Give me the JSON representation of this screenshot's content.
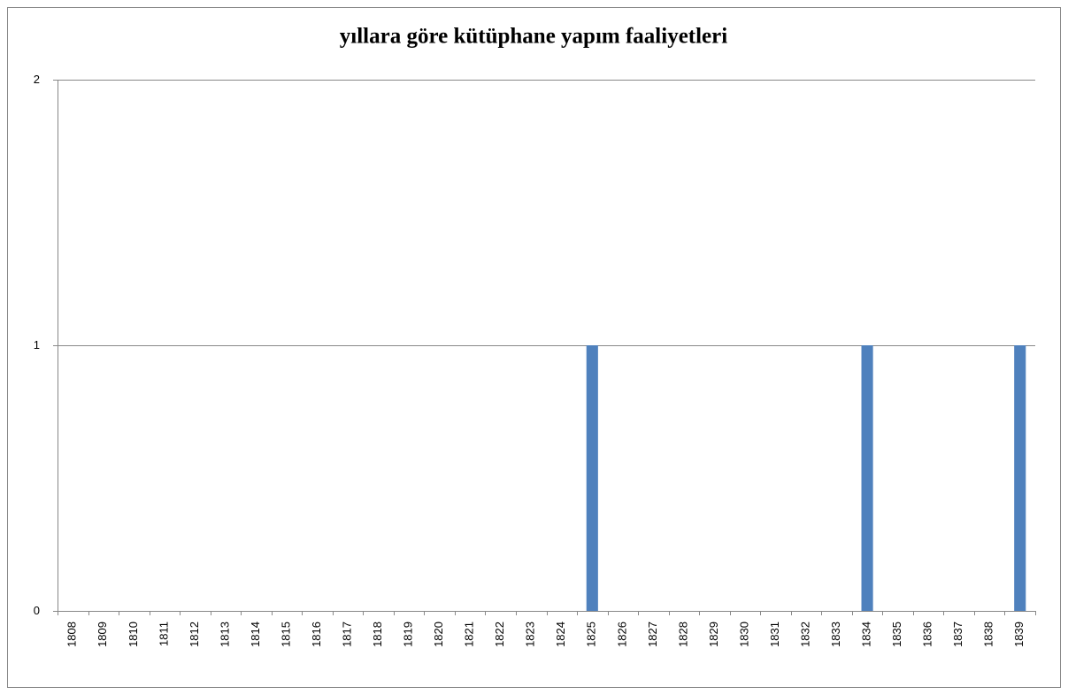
{
  "chart_data": {
    "type": "bar",
    "title": "yıllara göre kütüphane yapım faaliyetleri",
    "categories": [
      "1808",
      "1809",
      "1810",
      "1811",
      "1812",
      "1813",
      "1814",
      "1815",
      "1816",
      "1817",
      "1818",
      "1819",
      "1820",
      "1821",
      "1822",
      "1823",
      "1824",
      "1825",
      "1826",
      "1827",
      "1828",
      "1829",
      "1830",
      "1831",
      "1832",
      "1833",
      "1834",
      "1835",
      "1836",
      "1837",
      "1838",
      "1839"
    ],
    "values": [
      0,
      0,
      0,
      0,
      0,
      0,
      0,
      0,
      0,
      0,
      0,
      0,
      0,
      0,
      0,
      0,
      0,
      1,
      0,
      0,
      0,
      0,
      0,
      0,
      0,
      0,
      1,
      0,
      0,
      0,
      0,
      1
    ],
    "color": "#4f81bd",
    "ylim": [
      0,
      2
    ],
    "yticks": [
      0,
      1,
      2
    ],
    "grid": true
  }
}
